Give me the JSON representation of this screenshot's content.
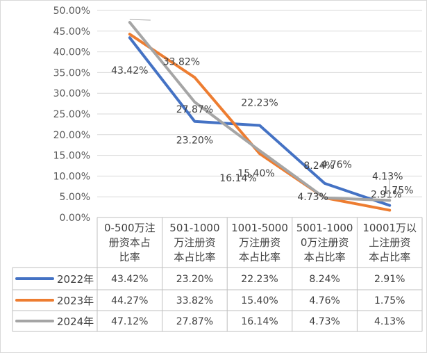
{
  "chart_data": {
    "type": "line",
    "categories": [
      [
        "0-500万注",
        "册资本占",
        "比率"
      ],
      [
        "501-1000",
        "万注册资",
        "本占比率"
      ],
      [
        "1001-5000",
        "万注册资",
        "本占比率"
      ],
      [
        "5001-1000",
        "0万注册资",
        "本占比率"
      ],
      [
        "10001万以",
        "上注册资",
        "本占比率"
      ]
    ],
    "y_ticks": [
      "0.00%",
      "5.00%",
      "10.00%",
      "15.00%",
      "20.00%",
      "25.00%",
      "30.00%",
      "35.00%",
      "40.00%",
      "45.00%",
      "50.00%"
    ],
    "ylim": [
      0,
      50
    ],
    "grid": true,
    "legend": "data-table",
    "title": "",
    "xlabel": "",
    "ylabel": "",
    "series": [
      {
        "name": "2022年",
        "color": "#4472C4",
        "values": [
          43.42,
          23.2,
          22.23,
          8.24,
          2.91
        ],
        "labels": [
          "43.42%",
          "23.20%",
          "22.23%",
          "8.24%",
          "2.91%"
        ]
      },
      {
        "name": "2023年",
        "color": "#ED7D31",
        "values": [
          44.27,
          33.82,
          15.4,
          4.76,
          1.75
        ],
        "labels": [
          "44.27%",
          "33.82%",
          "15.40%",
          "4.76%",
          "1.75%"
        ]
      },
      {
        "name": "2024年",
        "color": "#A5A5A5",
        "values": [
          47.12,
          27.87,
          16.14,
          4.73,
          4.13
        ],
        "labels": [
          "47.12%",
          "27.87%",
          "16.14%",
          "4.73%",
          "4.13%"
        ]
      }
    ]
  }
}
